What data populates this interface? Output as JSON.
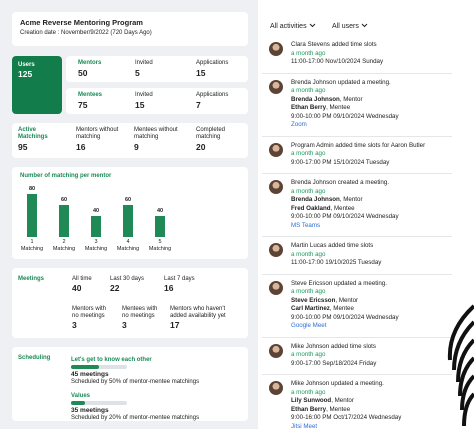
{
  "header": {
    "title": "Acme Reverse Mentoring Program",
    "creation_date": "Creation date : November/9/2022  (720 Days Ago)"
  },
  "users": {
    "label": "Users",
    "value": 125
  },
  "mentors_row": [
    {
      "label": "Mentors",
      "value": 50
    },
    {
      "label": "Invited",
      "value": 5
    },
    {
      "label": "Applications",
      "value": 15
    }
  ],
  "mentees_row": [
    {
      "label": "Mentees",
      "value": 75
    },
    {
      "label": "Invited",
      "value": 15
    },
    {
      "label": "Applications",
      "value": 7
    }
  ],
  "matchings": [
    {
      "label": "Active\nMatchings",
      "value": 95
    },
    {
      "label": "Mentors without\nmatching",
      "value": 16
    },
    {
      "label": "Mentees without\nmatching",
      "value": 9
    },
    {
      "label": "Completed\nmatching",
      "value": 20
    }
  ],
  "chart_data": {
    "type": "bar",
    "title": "Number of matching per mentor",
    "categories": [
      "1\nMatching",
      "2\nMatching",
      "3\nMatching",
      "4\nMatching",
      "5\nMatching"
    ],
    "values": [
      80,
      60,
      40,
      60,
      40
    ],
    "color": "#1f8a55"
  },
  "meetings": {
    "title": "Meetings",
    "stats": [
      {
        "label": "All time",
        "value": 40
      },
      {
        "label": "Last 30 days",
        "value": 22
      },
      {
        "label": "Last 7 days",
        "value": 16
      }
    ],
    "gaps": [
      {
        "label": "Mentors with\nno meetings",
        "value": 3
      },
      {
        "label": "Mentees with\nno meetings",
        "value": 3
      },
      {
        "label": "Mentors who haven't\nadded availability yet",
        "value": 17
      }
    ]
  },
  "scheduling": {
    "title": "Scheduling",
    "items": [
      {
        "name": "Let's get to know each other",
        "meetings": "45 meetings",
        "note": "Scheduled by 50% of mentor-mentee matchings"
      },
      {
        "name": "Values",
        "meetings": "35 meetings",
        "note": "Scheduled by 20% of mentor-mentee matchings"
      }
    ]
  },
  "filters": [
    "All activities",
    "All users"
  ],
  "activities": [
    {
      "title": "Clara Stevens added time slots",
      "ago": "a month ago",
      "time": "11:00-17:00 Nov/10/2024 Sunday"
    },
    {
      "title": "Brenda Johnson updated a meeting.",
      "ago": "a month ago",
      "people": [
        {
          "name": "Brenda Johnson",
          "role": ", Mentor"
        },
        {
          "name": "Ethan Berry",
          "role": ", Mentee"
        }
      ],
      "time": "9:00-10:00 PM 09/10/2024 Wednesday",
      "platform": "Zoom"
    },
    {
      "title": "Program Admin added time slots for Aaron Butler",
      "ago": "a month ago",
      "time": "9:00-17:00 PM 15/10/2024 Tuesday"
    },
    {
      "title": "Brenda Johnson created a meeting.",
      "ago": "a month ago",
      "people": [
        {
          "name": "Brenda Johnson",
          "role": ", Mentor"
        },
        {
          "name": "Fred Oakland",
          "role": ", Mentee"
        }
      ],
      "time": "9:00-10:00 PM 09/10/2024 Wednesday",
      "platform": "MS Teams"
    },
    {
      "title": "Martin Lucas added time slots",
      "ago": "a month ago",
      "time": "11:00-17:00 19/10/2025 Tuesday"
    },
    {
      "title": "Steve Ericsson updated a meeting.",
      "ago": "a month ago",
      "people": [
        {
          "name": "Steve Ericsson",
          "role": ", Mentor"
        },
        {
          "name": "Carl Martinez",
          "role": ", Mentee"
        }
      ],
      "time": "9:00-10:00 PM 09/10/2024 Wednesday",
      "platform": "Google Meet"
    },
    {
      "title": "Mike Johnson added time slots",
      "ago": "a month ago",
      "time": "9:00-17:00 Sep/18/2024 Friday"
    },
    {
      "title": "Mike Johnson updated a meeting.",
      "ago": "a month ago",
      "people": [
        {
          "name": "Lily Sunwood",
          "role": ", Mentor"
        },
        {
          "name": "Ethan Berry",
          "role": ", Mentee"
        }
      ],
      "time": "9:00-16:00 PM Oct/17/2024 Wednesday",
      "platform": "Jitsi Meet"
    }
  ]
}
